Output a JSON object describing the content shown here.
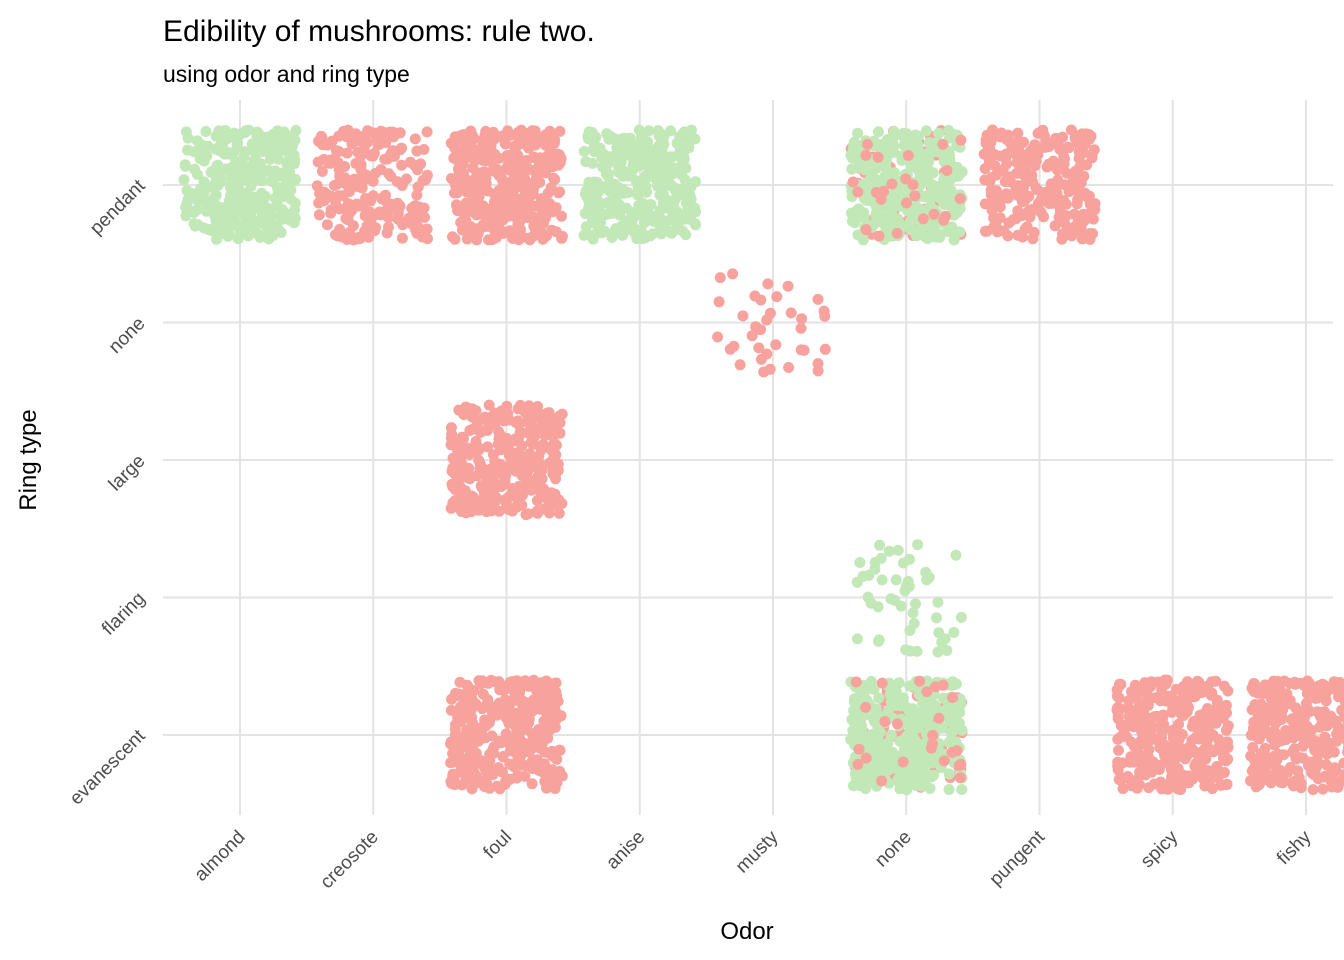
{
  "chart_data": {
    "type": "scatter",
    "jitter": true,
    "title": "Edibility of mushrooms: rule two.",
    "subtitle": "using odor and ring type",
    "xlabel": "Odor",
    "ylabel": "Ring type",
    "x_categories": [
      "almond",
      "creosote",
      "foul",
      "anise",
      "musty",
      "none",
      "pungent",
      "spicy",
      "fishy"
    ],
    "y_categories": [
      "evanescent",
      "flaring",
      "large",
      "none",
      "pendant"
    ],
    "grid": true,
    "legend": "none",
    "colors": {
      "edible": "#c2e8b8",
      "poisonous": "#f8a29e"
    },
    "groups": [
      {
        "odor": "almond",
        "ring_type": "pendant",
        "edible": 400,
        "poisonous": 0
      },
      {
        "odor": "creosote",
        "ring_type": "pendant",
        "edible": 0,
        "poisonous": 192
      },
      {
        "odor": "foul",
        "ring_type": "pendant",
        "edible": 0,
        "poisonous": 1152
      },
      {
        "odor": "foul",
        "ring_type": "large",
        "edible": 0,
        "poisonous": 1008
      },
      {
        "odor": "foul",
        "ring_type": "evanescent",
        "edible": 0,
        "poisonous": 1008
      },
      {
        "odor": "anise",
        "ring_type": "pendant",
        "edible": 400,
        "poisonous": 0
      },
      {
        "odor": "musty",
        "ring_type": "none",
        "edible": 0,
        "poisonous": 36
      },
      {
        "odor": "none",
        "ring_type": "pendant",
        "edible": 2136,
        "poisonous": 48
      },
      {
        "odor": "none",
        "ring_type": "flaring",
        "edible": 48,
        "poisonous": 0
      },
      {
        "odor": "none",
        "ring_type": "evanescent",
        "edible": 624,
        "poisonous": 72
      },
      {
        "odor": "pungent",
        "ring_type": "pendant",
        "edible": 0,
        "poisonous": 256
      },
      {
        "odor": "spicy",
        "ring_type": "evanescent",
        "edible": 0,
        "poisonous": 576
      },
      {
        "odor": "fishy",
        "ring_type": "evanescent",
        "edible": 0,
        "poisonous": 576
      }
    ]
  }
}
